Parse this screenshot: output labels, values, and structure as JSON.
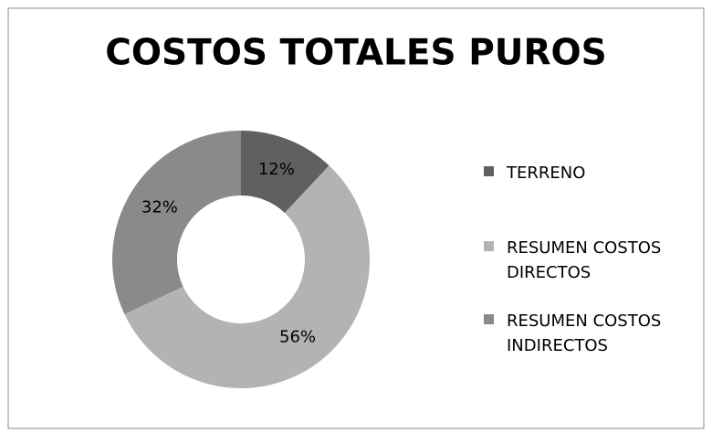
{
  "chart_data": {
    "type": "pie",
    "donut": true,
    "title": "COSTOS TOTALES PUROS",
    "categories": [
      "TERRENO",
      "RESUMEN COSTOS DIRECTOS",
      "RESUMEN COSTOS INDIRECTOS"
    ],
    "values": [
      12,
      56,
      32
    ],
    "value_labels": [
      "12%",
      "56%",
      "32%"
    ],
    "colors": [
      "#606060",
      "#b3b3b3",
      "#8a8a8a"
    ],
    "legend": "right"
  }
}
